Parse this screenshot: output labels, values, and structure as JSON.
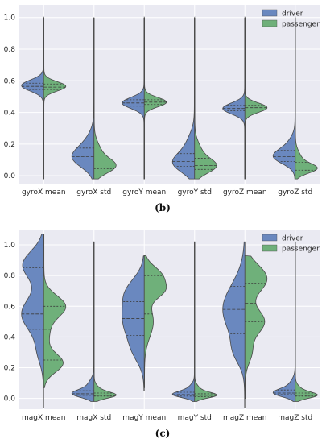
{
  "colors": {
    "driver": "#6a88bf",
    "passenger": "#6fb07a",
    "background": "#eaeaf2",
    "grid": "#ffffff",
    "quartile": "#3d3d3d"
  },
  "chart_data": [
    {
      "type": "violin",
      "split": true,
      "caption": "(b)",
      "categories": [
        "gyroX mean",
        "gyroX std",
        "gyroY mean",
        "gyroY std",
        "gyroZ mean",
        "gyroZ std"
      ],
      "ylim": [
        -0.05,
        1.08
      ],
      "yticks": [
        "0.0",
        "0.2",
        "0.4",
        "0.6",
        "0.8",
        "1.0"
      ],
      "yticks_values": [
        0,
        0.2,
        0.4,
        0.6,
        0.8,
        1.0
      ],
      "grid": true,
      "legend": {
        "placement": "top-right",
        "entries": [
          "driver",
          "passenger"
        ]
      },
      "series": [
        {
          "name": "driver",
          "color": "#6a88bf",
          "distributions": [
            {
              "min": -0.02,
              "max": 1.0,
              "peaks": [
                [
                  0.57,
                  0.9,
                  0.035
                ]
              ],
              "quartiles": [
                0.545,
                0.565,
                0.585
              ]
            },
            {
              "min": -0.02,
              "max": 1.0,
              "peaks": [
                [
                  0.11,
                  0.9,
                  0.06
                ],
                [
                  0.2,
                  0.35,
                  0.07
                ]
              ],
              "quartiles": [
                0.075,
                0.12,
                0.175
              ]
            },
            {
              "min": -0.02,
              "max": 1.0,
              "peaks": [
                [
                  0.46,
                  0.9,
                  0.035
                ]
              ],
              "quartiles": [
                0.44,
                0.46,
                0.48
              ]
            },
            {
              "min": -0.02,
              "max": 1.0,
              "peaks": [
                [
                  0.08,
                  0.9,
                  0.06
                ],
                [
                  0.2,
                  0.3,
                  0.07
                ]
              ],
              "quartiles": [
                0.06,
                0.09,
                0.14
              ]
            },
            {
              "min": -0.02,
              "max": 1.0,
              "peaks": [
                [
                  0.425,
                  0.9,
                  0.035
                ]
              ],
              "quartiles": [
                0.41,
                0.425,
                0.445
              ]
            },
            {
              "min": -0.02,
              "max": 1.0,
              "peaks": [
                [
                  0.12,
                  0.9,
                  0.045
                ],
                [
                  0.2,
                  0.25,
                  0.05
                ]
              ],
              "quartiles": [
                0.09,
                0.12,
                0.16
              ]
            }
          ]
        },
        {
          "name": "passenger",
          "color": "#6fb07a",
          "distributions": [
            {
              "min": -0.02,
              "max": 1.0,
              "peaks": [
                [
                  0.565,
                  0.9,
                  0.03
                ]
              ],
              "quartiles": [
                0.545,
                0.56,
                0.58
              ]
            },
            {
              "min": -0.02,
              "max": 1.0,
              "peaks": [
                [
                  0.06,
                  0.95,
                  0.045
                ],
                [
                  0.15,
                  0.3,
                  0.06
                ]
              ],
              "quartiles": [
                0.045,
                0.075,
                0.13
              ]
            },
            {
              "min": -0.02,
              "max": 1.0,
              "peaks": [
                [
                  0.465,
                  0.9,
                  0.03
                ]
              ],
              "quartiles": [
                0.45,
                0.465,
                0.48
              ]
            },
            {
              "min": -0.02,
              "max": 1.0,
              "peaks": [
                [
                  0.06,
                  0.95,
                  0.045
                ],
                [
                  0.15,
                  0.3,
                  0.06
                ]
              ],
              "quartiles": [
                0.04,
                0.065,
                0.11
              ]
            },
            {
              "min": -0.02,
              "max": 1.0,
              "peaks": [
                [
                  0.43,
                  0.9,
                  0.03
                ]
              ],
              "quartiles": [
                0.415,
                0.43,
                0.445
              ]
            },
            {
              "min": -0.02,
              "max": 1.0,
              "peaks": [
                [
                  0.045,
                  0.95,
                  0.03
                ],
                [
                  0.1,
                  0.3,
                  0.05
                ]
              ],
              "quartiles": [
                0.035,
                0.05,
                0.085
              ]
            }
          ]
        }
      ]
    },
    {
      "type": "violin",
      "split": true,
      "caption": "(c)",
      "categories": [
        "magX mean",
        "magX std",
        "magY mean",
        "magY std",
        "magZ mean",
        "magZ std"
      ],
      "ylim": [
        -0.07,
        1.1
      ],
      "yticks": [
        "0.0",
        "0.2",
        "0.4",
        "0.6",
        "0.8",
        "1.0"
      ],
      "yticks_values": [
        0,
        0.2,
        0.4,
        0.6,
        0.8,
        1.0
      ],
      "grid": true,
      "legend": {
        "placement": "top-right",
        "entries": [
          "driver",
          "passenger"
        ]
      },
      "series": [
        {
          "name": "driver",
          "color": "#6a88bf",
          "distributions": [
            {
              "min": -0.06,
              "max": 1.07,
              "peaks": [
                [
                  0.87,
                  0.8,
                  0.09
                ],
                [
                  0.55,
                  0.85,
                  0.11
                ],
                [
                  0.3,
                  0.2,
                  0.08
                ]
              ],
              "quartiles": [
                0.45,
                0.55,
                0.85
              ]
            },
            {
              "min": -0.02,
              "max": 1.02,
              "peaks": [
                [
                  0.03,
                  0.95,
                  0.025
                ],
                [
                  0.08,
                  0.3,
                  0.04
                ]
              ],
              "quartiles": [
                0.02,
                0.03,
                0.05
              ]
            },
            {
              "min": 0.05,
              "max": 0.93,
              "peaks": [
                [
                  0.5,
                  0.85,
                  0.12
                ],
                [
                  0.7,
                  0.6,
                  0.09
                ],
                [
                  0.3,
                  0.3,
                  0.08
                ]
              ],
              "quartiles": [
                0.41,
                0.52,
                0.63
              ]
            },
            {
              "min": -0.02,
              "max": 1.02,
              "peaks": [
                [
                  0.025,
                  0.95,
                  0.02
                ],
                [
                  0.06,
                  0.3,
                  0.03
                ]
              ],
              "quartiles": [
                0.015,
                0.025,
                0.04
              ]
            },
            {
              "min": -0.06,
              "max": 1.02,
              "peaks": [
                [
                  0.58,
                  0.9,
                  0.16
                ],
                [
                  0.3,
                  0.3,
                  0.08
                ]
              ],
              "quartiles": [
                0.42,
                0.58,
                0.73
              ]
            },
            {
              "min": -0.02,
              "max": 1.02,
              "peaks": [
                [
                  0.035,
                  0.95,
                  0.025
                ],
                [
                  0.08,
                  0.3,
                  0.04
                ]
              ],
              "quartiles": [
                0.025,
                0.035,
                0.055
              ]
            }
          ]
        },
        {
          "name": "passenger",
          "color": "#6fb07a",
          "distributions": [
            {
              "min": 0.07,
              "max": 1.07,
              "peaks": [
                [
                  0.6,
                  0.85,
                  0.07
                ],
                [
                  0.23,
                  0.75,
                  0.06
                ],
                [
                  0.42,
                  0.2,
                  0.08
                ]
              ],
              "quartiles": [
                0.25,
                0.45,
                0.6
              ]
            },
            {
              "min": -0.02,
              "max": 1.02,
              "peaks": [
                [
                  0.02,
                  0.95,
                  0.02
                ],
                [
                  0.05,
                  0.3,
                  0.03
                ]
              ],
              "quartiles": [
                0.015,
                0.02,
                0.035
              ]
            },
            {
              "min": 0.07,
              "max": 0.93,
              "peaks": [
                [
                  0.8,
                  0.75,
                  0.06
                ],
                [
                  0.7,
                  0.7,
                  0.05
                ],
                [
                  0.5,
                  0.4,
                  0.1
                ]
              ],
              "quartiles": [
                0.55,
                0.72,
                0.8
              ]
            },
            {
              "min": -0.02,
              "max": 1.02,
              "peaks": [
                [
                  0.02,
                  0.95,
                  0.018
                ],
                [
                  0.05,
                  0.3,
                  0.03
                ]
              ],
              "quartiles": [
                0.012,
                0.02,
                0.03
              ]
            },
            {
              "min": 0.0,
              "max": 0.93,
              "peaks": [
                [
                  0.78,
                  0.85,
                  0.09
                ],
                [
                  0.5,
                  0.75,
                  0.08
                ],
                [
                  0.3,
                  0.25,
                  0.07
                ]
              ],
              "quartiles": [
                0.5,
                0.62,
                0.75
              ]
            },
            {
              "min": -0.02,
              "max": 1.02,
              "peaks": [
                [
                  0.02,
                  0.95,
                  0.02
                ],
                [
                  0.05,
                  0.3,
                  0.03
                ]
              ],
              "quartiles": [
                0.015,
                0.02,
                0.035
              ]
            }
          ]
        }
      ]
    }
  ]
}
